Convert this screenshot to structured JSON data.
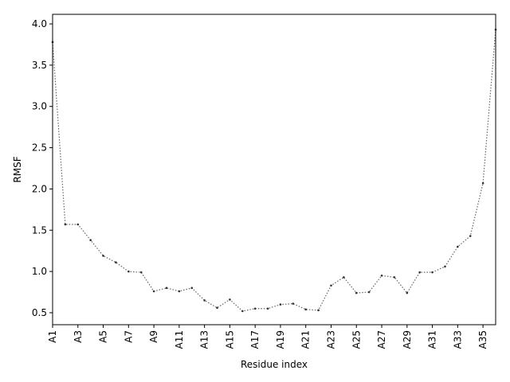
{
  "chart_data": {
    "type": "line",
    "xlabel": "Residue index",
    "ylabel": "RMSF",
    "categories": [
      "A1",
      null,
      "A3",
      null,
      "A5",
      null,
      "A7",
      null,
      "A9",
      null,
      "A11",
      null,
      "A13",
      null,
      "A15",
      null,
      "A17",
      null,
      "A19",
      null,
      "A21",
      null,
      "A23",
      null,
      "A25",
      null,
      "A27",
      null,
      "A29",
      null,
      "A31",
      null,
      "A33",
      null,
      "A35",
      null
    ],
    "values": [
      3.78,
      1.57,
      1.57,
      1.38,
      1.19,
      1.11,
      1.0,
      0.99,
      0.76,
      0.8,
      0.76,
      0.8,
      0.65,
      0.56,
      0.66,
      0.52,
      0.55,
      0.55,
      0.6,
      0.61,
      0.54,
      0.53,
      0.83,
      0.93,
      0.74,
      0.75,
      0.95,
      0.93,
      0.74,
      0.99,
      0.99,
      1.06,
      1.3,
      1.43,
      2.07,
      3.93
    ],
    "color": "#666666",
    "ylim": [
      0.355,
      4.116
    ],
    "yticks": [
      0.5,
      {
        "value": 1,
        "label": "1.0"
      },
      1.5,
      {
        "value": 2,
        "label": "2.0"
      },
      2.5,
      {
        "value": 3,
        "label": "3.0"
      },
      3.5,
      {
        "value": 4,
        "label": "4.0"
      }
    ],
    "grid": false
  }
}
